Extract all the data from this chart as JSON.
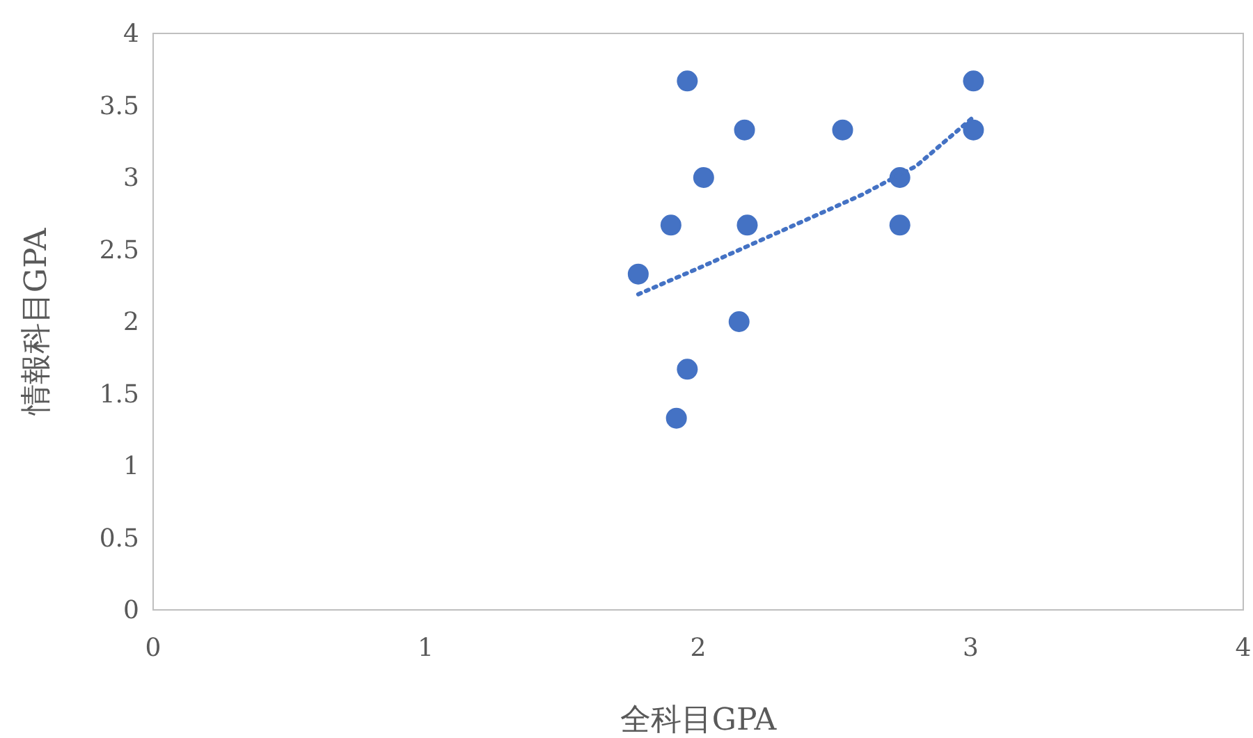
{
  "chart_data": {
    "type": "scatter",
    "xlabel": "全科目GPA",
    "ylabel": "情報科目GPA",
    "xlim": [
      0,
      4
    ],
    "ylim": [
      0,
      4
    ],
    "xticks": [
      0,
      1,
      2,
      3,
      4
    ],
    "yticks": [
      0,
      0.5,
      1,
      1.5,
      2,
      2.5,
      3,
      3.5,
      4
    ],
    "marker": "circle",
    "series": [
      {
        "color": "#4472c4",
        "x": [
          1.78,
          1.9,
          1.96,
          2.02,
          2.17,
          2.18,
          2.15,
          1.96,
          1.92,
          2.53,
          2.74,
          2.74,
          3.01,
          3.01
        ],
        "values": [
          2.33,
          2.67,
          3.67,
          3.0,
          3.33,
          2.67,
          2.0,
          1.67,
          1.33,
          3.33,
          3.0,
          2.67,
          3.67,
          3.33
        ]
      },
      {
        "type": "line",
        "color": "#4472c4",
        "line_style": "dotted",
        "marker": "none",
        "x": [
          1.78,
          2.0,
          2.2,
          2.4,
          2.6,
          2.8,
          3.01
        ],
        "values": [
          2.19,
          2.37,
          2.54,
          2.71,
          2.88,
          3.08,
          3.42
        ]
      }
    ]
  }
}
